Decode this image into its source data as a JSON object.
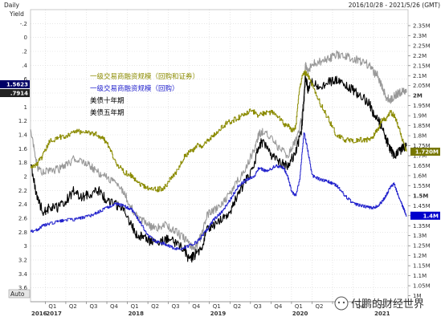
{
  "header": {
    "frequency": "Daily",
    "date_range": "2016/10/28 - 2021/5/26 (GMT)"
  },
  "left_axis": {
    "title": "Yield",
    "auto": "Auto"
  },
  "watermark": "付鹏的财经世界",
  "chart_data": {
    "type": "line",
    "title": "",
    "colors": {
      "repo_plus_bond": "#8b8b00",
      "repo_only": "#2222cc",
      "ust_10y": "#000000",
      "ust_5y": "#999999",
      "grid": "#d8d8d8",
      "price_tag_bg": "#0000cc"
    },
    "left_axis": {
      "label": "Yield",
      "inverted": true,
      "range": [
        -0.4,
        3.8
      ],
      "ticks": [
        -0.2,
        0,
        0.2,
        0.4,
        0.6,
        0.8,
        1,
        1.2,
        1.4,
        1.6,
        1.8,
        2,
        2.2,
        2.4,
        2.6,
        2.8,
        3,
        3.2,
        3.4,
        3.6
      ],
      "tick_labels": [
        "-.2",
        "0",
        ".2",
        ".4",
        ".6",
        ".8",
        "1",
        "1.2",
        "1.4",
        "1.6",
        "1.8",
        "2",
        "2.2",
        "2.4",
        "2.6",
        "2.8",
        "3",
        "3.2",
        "3.4",
        "3.6"
      ]
    },
    "right_axis": {
      "range": [
        0.97,
        2.43
      ],
      "ticks": [
        1.0,
        1.05,
        1.1,
        1.15,
        1.2,
        1.25,
        1.3,
        1.35,
        1.4,
        1.45,
        1.5,
        1.55,
        1.6,
        1.65,
        1.7,
        1.75,
        1.8,
        1.85,
        1.9,
        1.95,
        2.0,
        2.05,
        2.1,
        2.15,
        2.2,
        2.25,
        2.3,
        2.35
      ],
      "tick_labels": [
        "1M",
        "1.05M",
        "1.1M",
        "1.15M",
        "1.2M",
        "1.25M",
        "1.3M",
        "1.35M",
        "1.4M",
        "1.45M",
        "1.5M",
        "1.55M",
        "1.6M",
        "1.65M",
        "1.7M",
        "1.75M",
        "1.8M",
        "1.85M",
        "1.9M",
        "1.95M",
        "2M",
        "2.05M",
        "2.1M",
        "2.15M",
        "2.2M",
        "2.25M",
        "2.3M",
        "2.35M"
      ],
      "bold_ticks": [
        "1.5M",
        "2M"
      ]
    },
    "x_axis": {
      "range": [
        2016.82,
        2021.42
      ],
      "quarter_ticks": [
        {
          "x": 2017.0,
          "label": "Q1"
        },
        {
          "x": 2017.25,
          "label": "Q2"
        },
        {
          "x": 2017.5,
          "label": "Q3"
        },
        {
          "x": 2017.75,
          "label": "Q4"
        },
        {
          "x": 2018.0,
          "label": "Q1"
        },
        {
          "x": 2018.25,
          "label": "Q2"
        },
        {
          "x": 2018.5,
          "label": "Q3"
        },
        {
          "x": 2018.75,
          "label": "Q4"
        },
        {
          "x": 2019.0,
          "label": "Q1"
        },
        {
          "x": 2019.25,
          "label": "Q2"
        },
        {
          "x": 2019.5,
          "label": "Q3"
        },
        {
          "x": 2019.75,
          "label": "Q4"
        },
        {
          "x": 2020.0,
          "label": "Q1"
        },
        {
          "x": 2020.25,
          "label": "Q2"
        },
        {
          "x": 2020.5,
          "label": "Q3"
        },
        {
          "x": 2020.75,
          "label": "Q4"
        },
        {
          "x": 2021.0,
          "label": "Q1"
        }
      ],
      "year_ticks": [
        {
          "x": 2016.82,
          "label": "2016"
        },
        {
          "x": 2017.0,
          "label": "2017"
        },
        {
          "x": 2018.0,
          "label": "2018"
        },
        {
          "x": 2019.0,
          "label": "2019"
        },
        {
          "x": 2020.0,
          "label": "2020"
        },
        {
          "x": 2021.0,
          "label": "2021"
        }
      ]
    },
    "legend": [
      {
        "name": "一级交易商融资规模（回购和证券）",
        "color": "#8b8b00"
      },
      {
        "name": "一级交易商融资规模（回购）",
        "color": "#2222cc"
      },
      {
        "name": "美债十年期",
        "color": "#000000"
      },
      {
        "name": "美债五年期",
        "color": "#000000"
      }
    ],
    "last_value_tags": [
      {
        "text": "1.5623",
        "axis": "left",
        "value": 1.5623
      },
      {
        "text": ".7914",
        "axis": "left",
        "value": 0.7914
      },
      {
        "text": "1.720M",
        "axis": "right",
        "value": 1.72
      },
      {
        "text": "1.4M",
        "axis": "right",
        "value": 1.4
      }
    ],
    "series": [
      {
        "name": "美债十年期",
        "axis": "left",
        "x": [
          2016.82,
          2016.9,
          2016.97,
          2017.05,
          2017.15,
          2017.25,
          2017.35,
          2017.45,
          2017.55,
          2017.65,
          2017.75,
          2017.85,
          2017.95,
          2018.05,
          2018.12,
          2018.2,
          2018.3,
          2018.4,
          2018.5,
          2018.6,
          2018.7,
          2018.75,
          2018.8,
          2018.9,
          2018.97,
          2019.05,
          2019.15,
          2019.25,
          2019.35,
          2019.45,
          2019.55,
          2019.6,
          2019.65,
          2019.75,
          2019.85,
          2019.95,
          2020.05,
          2020.12,
          2020.15,
          2020.17,
          2020.2,
          2020.25,
          2020.35,
          2020.45,
          2020.55,
          2020.65,
          2020.75,
          2020.85,
          2020.95,
          2021.0,
          2021.05,
          2021.1,
          2021.15,
          2021.2,
          2021.25,
          2021.3,
          2021.35,
          2021.4
        ],
        "values": [
          1.8,
          2.3,
          2.5,
          2.45,
          2.45,
          2.35,
          2.2,
          2.3,
          2.25,
          2.2,
          2.35,
          2.4,
          2.45,
          2.7,
          2.85,
          2.85,
          2.95,
          2.95,
          2.9,
          2.95,
          3.05,
          3.2,
          3.15,
          3.05,
          2.75,
          2.7,
          2.6,
          2.5,
          2.25,
          2.05,
          1.8,
          1.55,
          1.5,
          1.7,
          1.8,
          1.85,
          1.65,
          1.35,
          0.95,
          0.55,
          0.75,
          0.65,
          0.7,
          0.65,
          0.6,
          0.7,
          0.75,
          0.85,
          0.95,
          1.1,
          1.15,
          1.3,
          1.45,
          1.6,
          1.7,
          1.65,
          1.6,
          1.56
        ]
      },
      {
        "name": "美债五年期",
        "axis": "left",
        "x": [
          2016.82,
          2016.9,
          2016.97,
          2017.05,
          2017.15,
          2017.25,
          2017.35,
          2017.45,
          2017.55,
          2017.65,
          2017.75,
          2017.85,
          2017.95,
          2018.05,
          2018.15,
          2018.25,
          2018.35,
          2018.45,
          2018.55,
          2018.65,
          2018.75,
          2018.82,
          2018.9,
          2018.97,
          2019.05,
          2019.15,
          2019.25,
          2019.35,
          2019.45,
          2019.55,
          2019.6,
          2019.65,
          2019.75,
          2019.85,
          2019.95,
          2020.05,
          2020.12,
          2020.15,
          2020.17,
          2020.2,
          2020.25,
          2020.35,
          2020.45,
          2020.55,
          2020.65,
          2020.75,
          2020.85,
          2020.95,
          2021.0,
          2021.05,
          2021.1,
          2021.15,
          2021.2,
          2021.25,
          2021.3,
          2021.35,
          2021.4
        ],
        "values": [
          1.3,
          1.85,
          1.95,
          1.9,
          1.9,
          1.85,
          1.75,
          1.8,
          1.85,
          1.95,
          2.0,
          2.1,
          2.2,
          2.45,
          2.6,
          2.7,
          2.75,
          2.7,
          2.75,
          2.85,
          2.95,
          3.05,
          2.85,
          2.55,
          2.5,
          2.4,
          2.25,
          2.05,
          1.85,
          1.6,
          1.4,
          1.35,
          1.45,
          1.6,
          1.7,
          1.5,
          1.2,
          0.85,
          0.4,
          0.5,
          0.38,
          0.35,
          0.3,
          0.25,
          0.27,
          0.3,
          0.35,
          0.4,
          0.5,
          0.55,
          0.7,
          0.85,
          0.9,
          0.85,
          0.8,
          0.78,
          0.79
        ]
      },
      {
        "name": "一级交易商融资规模（回购和证券）",
        "axis": "right",
        "x": [
          2016.82,
          2016.9,
          2016.97,
          2017.05,
          2017.15,
          2017.25,
          2017.35,
          2017.4,
          2017.5,
          2017.6,
          2017.7,
          2017.75,
          2017.85,
          2017.95,
          2018.05,
          2018.15,
          2018.25,
          2018.35,
          2018.45,
          2018.55,
          2018.6,
          2018.7,
          2018.8,
          2018.85,
          2018.9,
          2019.0,
          2019.1,
          2019.2,
          2019.3,
          2019.4,
          2019.5,
          2019.6,
          2019.7,
          2019.8,
          2019.9,
          2019.95,
          2020.0,
          2020.05,
          2020.1,
          2020.15,
          2020.2,
          2020.25,
          2020.35,
          2020.45,
          2020.55,
          2020.65,
          2020.75,
          2020.85,
          2020.95,
          2021.0,
          2021.05,
          2021.1,
          2021.15,
          2021.2,
          2021.25,
          2021.3,
          2021.35,
          2021.4
        ],
        "values": [
          1.64,
          1.66,
          1.7,
          1.77,
          1.79,
          1.8,
          1.82,
          1.82,
          1.82,
          1.81,
          1.79,
          1.76,
          1.67,
          1.62,
          1.6,
          1.56,
          1.54,
          1.53,
          1.54,
          1.6,
          1.62,
          1.7,
          1.73,
          1.75,
          1.75,
          1.78,
          1.82,
          1.86,
          1.88,
          1.9,
          1.93,
          1.9,
          1.92,
          1.91,
          1.86,
          1.85,
          1.83,
          1.84,
          2.05,
          2.12,
          2.1,
          2.05,
          1.96,
          1.88,
          1.8,
          1.78,
          1.77,
          1.78,
          1.78,
          1.8,
          1.83,
          1.88,
          1.88,
          1.92,
          1.9,
          1.85,
          1.78,
          1.72
        ]
      },
      {
        "name": "一级交易商融资规模（回购）",
        "axis": "right",
        "x": [
          2016.82,
          2016.9,
          2016.97,
          2017.05,
          2017.15,
          2017.25,
          2017.35,
          2017.45,
          2017.55,
          2017.65,
          2017.75,
          2017.85,
          2017.95,
          2018.05,
          2018.15,
          2018.25,
          2018.35,
          2018.45,
          2018.55,
          2018.65,
          2018.75,
          2018.85,
          2018.95,
          2019.05,
          2019.15,
          2019.25,
          2019.35,
          2019.45,
          2019.55,
          2019.6,
          2019.7,
          2019.8,
          2019.9,
          2019.95,
          2020.0,
          2020.05,
          2020.1,
          2020.15,
          2020.2,
          2020.25,
          2020.35,
          2020.45,
          2020.55,
          2020.65,
          2020.75,
          2020.85,
          2020.95,
          2021.0,
          2021.05,
          2021.1,
          2021.15,
          2021.2,
          2021.25,
          2021.3,
          2021.35,
          2021.4
        ],
        "values": [
          1.32,
          1.33,
          1.35,
          1.36,
          1.37,
          1.38,
          1.38,
          1.39,
          1.4,
          1.42,
          1.44,
          1.46,
          1.45,
          1.43,
          1.37,
          1.3,
          1.27,
          1.26,
          1.24,
          1.23,
          1.25,
          1.27,
          1.32,
          1.38,
          1.42,
          1.48,
          1.55,
          1.58,
          1.6,
          1.64,
          1.62,
          1.65,
          1.64,
          1.6,
          1.52,
          1.5,
          1.58,
          1.82,
          1.72,
          1.6,
          1.58,
          1.57,
          1.55,
          1.5,
          1.46,
          1.45,
          1.44,
          1.44,
          1.45,
          1.47,
          1.5,
          1.54,
          1.56,
          1.5,
          1.45,
          1.4
        ]
      }
    ]
  }
}
